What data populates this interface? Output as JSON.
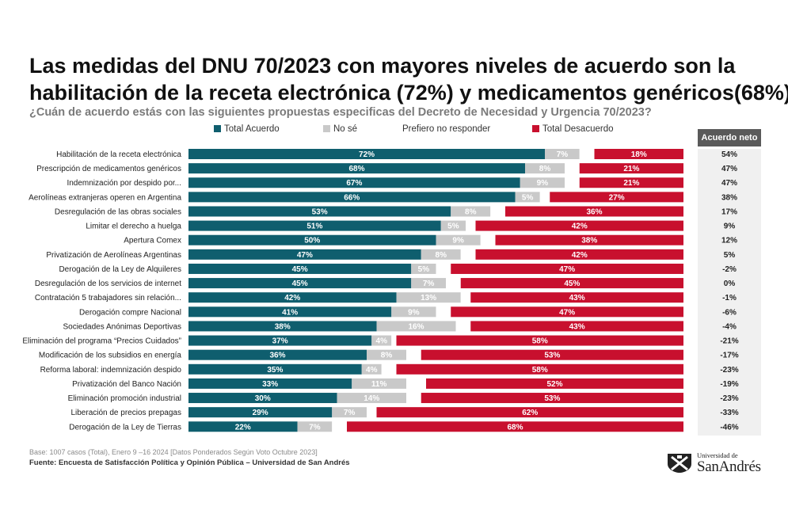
{
  "title_line1": "Las medidas del DNU 70/2023 con mayores niveles de acuerdo son la",
  "title_line2": "habilitación de la receta electrónica (72%) y medicamentos genéricos(68%)",
  "subtitle": "¿Cuán de acuerdo estás con las siguientes propuestas especificas del Decreto de Necesidad y Urgencia 70/2023?",
  "net_header": "Acuerdo neto",
  "footnote": "Base: 1007 casos (Total), Enero 9 –16 2024 [Datos Ponderados Según Voto Octubre 2023]",
  "source": "Fuente: Encuesta de Satisfacción Política y Opinión Pública – Universidad de San Andrés",
  "logo": {
    "small": "Universidad de",
    "big": "SanAndrés"
  },
  "colors": {
    "acuerdo": "#0f5e6e",
    "nose": "#c9c9c9",
    "prefiero": "#ffffff",
    "desacuerdo": "#c8102e"
  },
  "chart_data": {
    "type": "bar",
    "stacked": true,
    "orientation": "horizontal",
    "legend_position": "top",
    "series": [
      {
        "name": "Total Acuerdo",
        "color": "#0f5e6e"
      },
      {
        "name": "No sé",
        "color": "#c9c9c9"
      },
      {
        "name": "Prefiero no responder",
        "color": "#ffffff"
      },
      {
        "name": "Total Desacuerdo",
        "color": "#c8102e"
      }
    ],
    "categories": [
      "Habilitación de la receta electrónica",
      "Prescripción de medicamentos genéricos",
      "Indemnización por despido por...",
      "Aerolíneas extranjeras operen en Argentina",
      "Desregulación de las obras sociales",
      "Limitar el derecho a huelga",
      "Apertura Comex",
      "Privatización de Aerolíneas Argentinas",
      "Derogación de la Ley de Alquileres",
      "Desregulación de los servicios de internet",
      "Contratación 5 trabajadores sin relación...",
      "Derogación compre Nacional",
      "Sociedades Anónimas Deportivas",
      "Eliminación del programa “Precios Cuidados”",
      "Modificación de los subsidios en energía",
      "Reforma laboral: indemnización despido",
      "Privatización del Banco Nación",
      "Eliminación promoción industrial",
      "Liberación de precios prepagas",
      "Derogación de la Ley de Tierras"
    ],
    "acuerdo": [
      72,
      68,
      67,
      66,
      53,
      51,
      50,
      47,
      45,
      45,
      42,
      41,
      38,
      37,
      36,
      35,
      33,
      30,
      29,
      22
    ],
    "nose": [
      7,
      8,
      9,
      5,
      8,
      5,
      9,
      8,
      5,
      7,
      13,
      9,
      16,
      4,
      8,
      4,
      11,
      14,
      7,
      7
    ],
    "prefiero": [
      3,
      3,
      3,
      2,
      3,
      2,
      3,
      3,
      3,
      3,
      2,
      3,
      3,
      1,
      3,
      3,
      4,
      3,
      2,
      3
    ],
    "desacuerdo": [
      18,
      21,
      21,
      27,
      36,
      42,
      38,
      42,
      47,
      45,
      43,
      47,
      43,
      58,
      53,
      58,
      52,
      53,
      62,
      68
    ],
    "acuerdo_labels": [
      "72%",
      "68%",
      "67%",
      "66%",
      "53%",
      "51%",
      "50%",
      "47%",
      "45%",
      "45%",
      "42%",
      "41%",
      "38%",
      "37%",
      "36%",
      "35%",
      "33%",
      "30%",
      "29%",
      "22%"
    ],
    "nose_labels": [
      "7%",
      "8%",
      "9%",
      "5%",
      "8%",
      "5%",
      "9%",
      "8%",
      "5%",
      "7%",
      "13%",
      "9%",
      "16%",
      "4%",
      "8%",
      "4%",
      "11%",
      "14%",
      "7%",
      "7%"
    ],
    "desacuerdo_labels": [
      "18%",
      "21%",
      "21%",
      "27%",
      "36%",
      "42%",
      "38%",
      "42%",
      "47%",
      "45%",
      "43%",
      "47%",
      "43%",
      "58%",
      "53%",
      "58%",
      "52%",
      "53%",
      "62%",
      "68%"
    ],
    "acuerdo_neto": [
      "54%",
      "47%",
      "47%",
      "38%",
      "17%",
      "9%",
      "12%",
      "5%",
      "-2%",
      "0%",
      "-1%",
      "-6%",
      "-4%",
      "-21%",
      "-17%",
      "-23%",
      "-19%",
      "-23%",
      "-33%",
      "-46%"
    ]
  }
}
